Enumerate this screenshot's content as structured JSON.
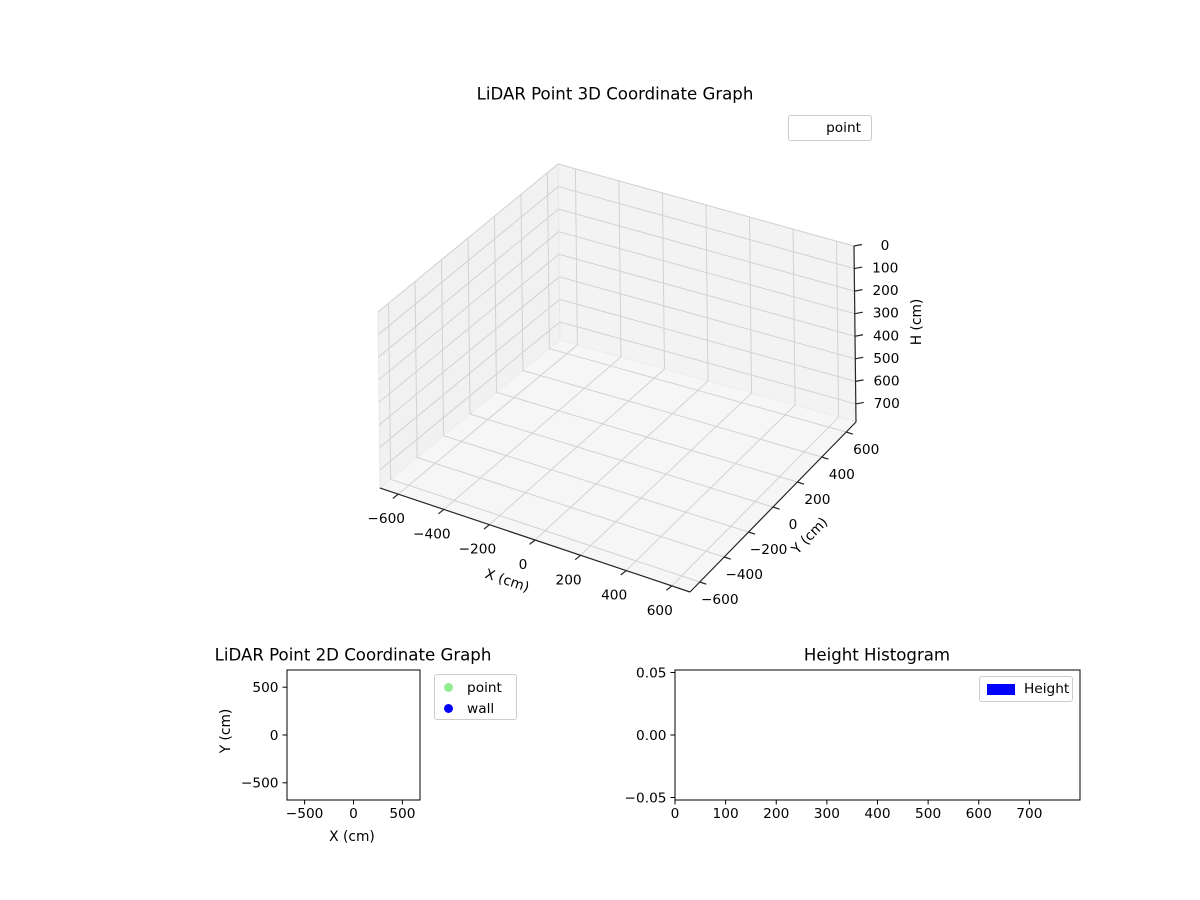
{
  "figure": {
    "background": "#ffffff"
  },
  "chart_data": [
    {
      "id": "plot3d",
      "type": "scatter3d",
      "title": "LiDAR Point 3D Coordinate Graph",
      "xlabel": "X (cm)",
      "ylabel": "Y (cm)",
      "zlabel": "H (cm)",
      "xlim": [
        -680,
        680
      ],
      "ylim": [
        -680,
        680
      ],
      "zlim": [
        0,
        780
      ],
      "z_axis_inverted": true,
      "xticks": [
        -600,
        -400,
        -200,
        0,
        200,
        400,
        600
      ],
      "yticks": [
        -600,
        -400,
        -200,
        0,
        200,
        400,
        600
      ],
      "zticks": [
        0,
        100,
        200,
        300,
        400,
        500,
        600,
        700
      ],
      "grid": true,
      "pane_color": "#f2f2f2",
      "grid_color": "#d2d2d2",
      "legend": {
        "position": "upper-right",
        "entries": [
          {
            "label": "point",
            "marker": "none"
          }
        ]
      },
      "series": [
        {
          "name": "point",
          "points": []
        }
      ]
    },
    {
      "id": "plot2d",
      "type": "scatter",
      "title": "LiDAR Point 2D Coordinate Graph",
      "xlabel": "X (cm)",
      "ylabel": "Y (cm)",
      "xlim": [
        -680,
        680
      ],
      "ylim": [
        -680,
        680
      ],
      "xticks": [
        -500,
        0,
        500
      ],
      "yticks": [
        -500,
        0,
        500
      ],
      "grid": false,
      "legend": {
        "position": "outside-right",
        "entries": [
          {
            "label": "point",
            "color": "#90ee90",
            "marker": "circle"
          },
          {
            "label": "wall",
            "color": "#0000ff",
            "marker": "circle"
          }
        ]
      },
      "series": [
        {
          "name": "point",
          "points": []
        },
        {
          "name": "wall",
          "points": []
        }
      ]
    },
    {
      "id": "hist",
      "type": "bar",
      "title": "Height Histogram",
      "xlabel": "",
      "ylabel": "",
      "xlim": [
        0,
        800
      ],
      "ylim": [
        -0.052,
        0.052
      ],
      "xticks": [
        0,
        100,
        200,
        300,
        400,
        500,
        600,
        700
      ],
      "yticks": [
        -0.05,
        0,
        0.05
      ],
      "ytick_decimals": 2,
      "grid": false,
      "legend": {
        "position": "upper-right",
        "entries": [
          {
            "label": "Height",
            "color": "#0000ff",
            "marker": "rect"
          }
        ]
      },
      "series": [
        {
          "name": "Height",
          "values": []
        }
      ]
    }
  ]
}
